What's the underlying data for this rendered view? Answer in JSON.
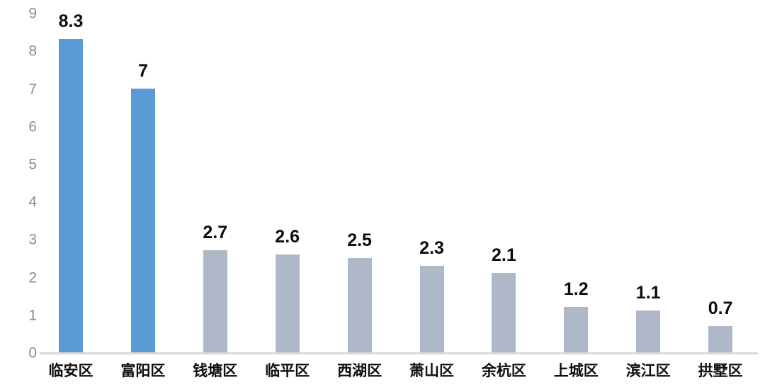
{
  "chart_data": {
    "type": "bar",
    "categories": [
      "临安区",
      "富阳区",
      "钱塘区",
      "临平区",
      "西湖区",
      "萧山区",
      "余杭区",
      "上城区",
      "滨江区",
      "拱墅区"
    ],
    "values": [
      8.3,
      7,
      2.7,
      2.6,
      2.5,
      2.3,
      2.1,
      1.2,
      1.1,
      0.7
    ],
    "data_labels": [
      "8.3",
      "7",
      "2.7",
      "2.6",
      "2.5",
      "2.3",
      "2.1",
      "1.2",
      "1.1",
      "0.7"
    ],
    "title": "",
    "xlabel": "",
    "ylabel": "",
    "ylim": [
      0,
      9
    ],
    "yticks": [
      0,
      1,
      2,
      3,
      4,
      5,
      6,
      7,
      8,
      9
    ],
    "grid": false,
    "legend": false,
    "colors": {
      "highlight_bar": "#5B9BD5",
      "default_bar": "#AEB8C8",
      "axis_line": "#D8D8D8",
      "ytick_label": "#8C8C8C",
      "xtick_label": "#0D0D0D",
      "data_label": "#0D0D0D",
      "background": "#FFFFFF"
    },
    "highlight_indices": [
      0,
      1
    ]
  }
}
